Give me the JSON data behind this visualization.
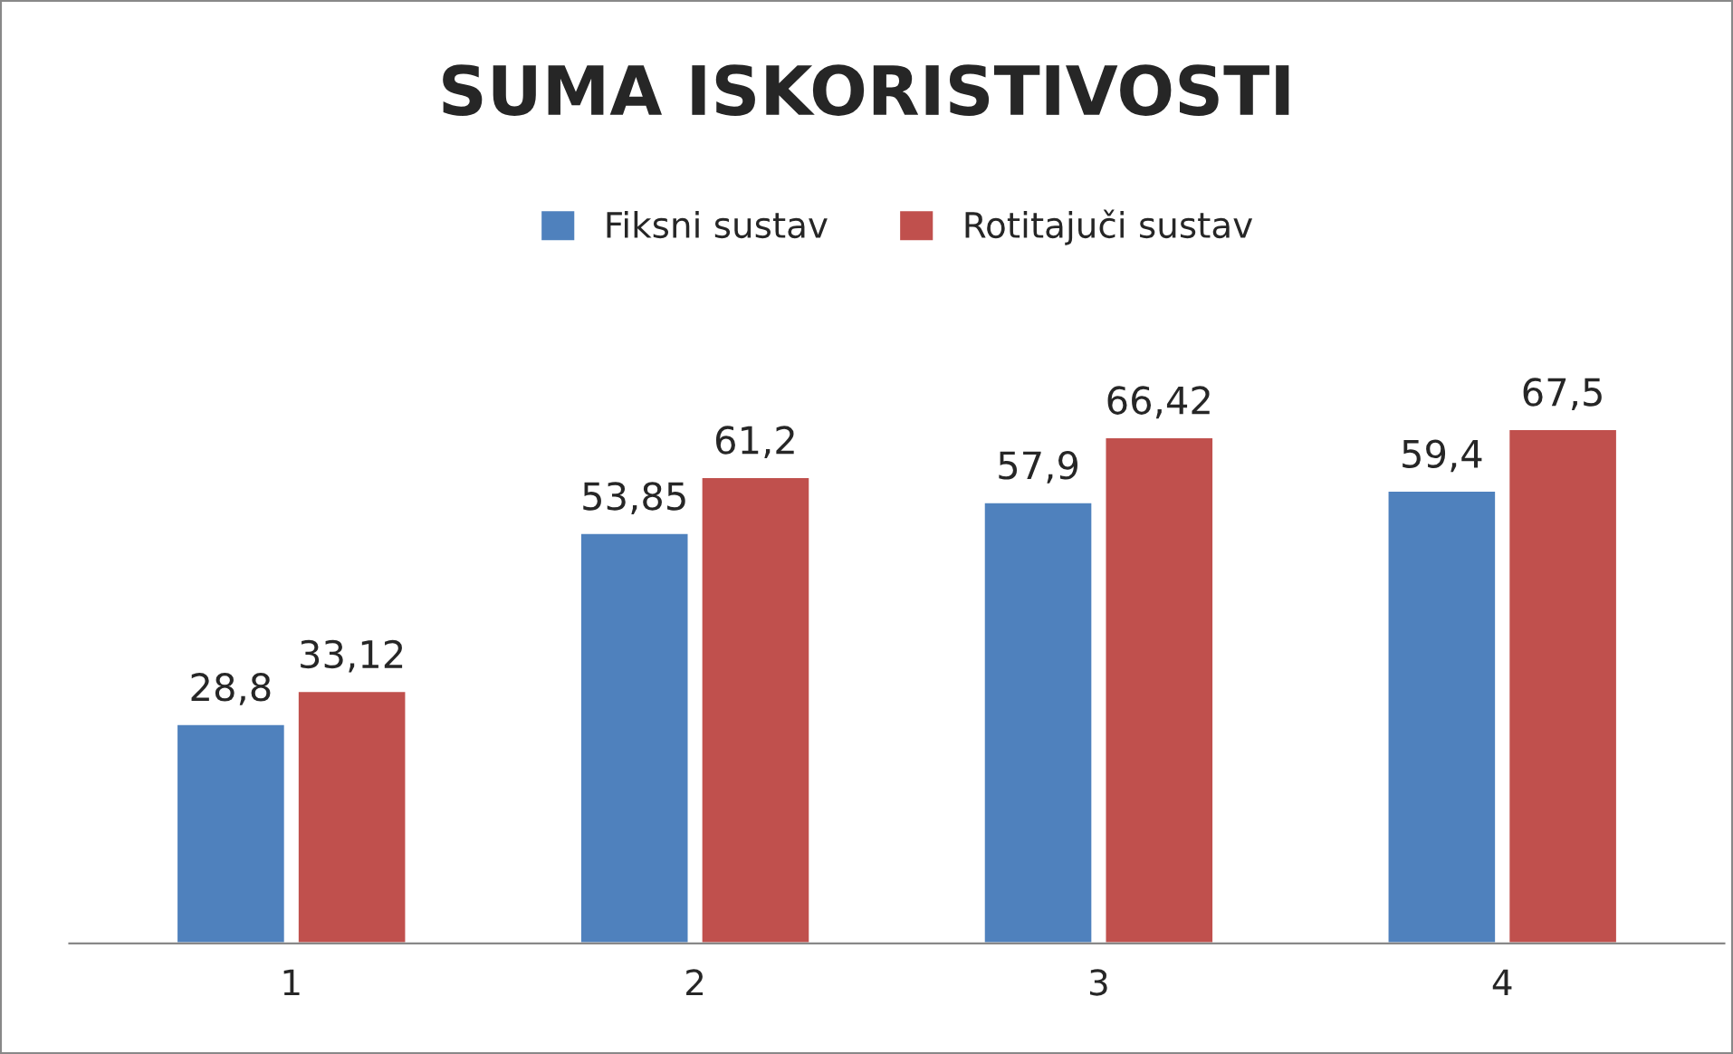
{
  "chart_data": {
    "type": "bar",
    "title": "SUMA ISKORISTIVOSTI",
    "categories": [
      "1",
      "2",
      "3",
      "4"
    ],
    "series": [
      {
        "name": "Fiksni sustav",
        "color": "#4f81bd",
        "values": [
          28.8,
          53.85,
          57.9,
          59.4
        ],
        "value_labels": [
          "28,8",
          "53,85",
          "57,9",
          "59,4"
        ]
      },
      {
        "name": "Rotitajuči sustav",
        "color": "#c0504d",
        "values": [
          33.12,
          61.2,
          66.42,
          67.5
        ],
        "value_labels": [
          "33,12",
          "61,2",
          "66,42",
          "67,5"
        ]
      }
    ],
    "legend": "top",
    "grid": false
  }
}
